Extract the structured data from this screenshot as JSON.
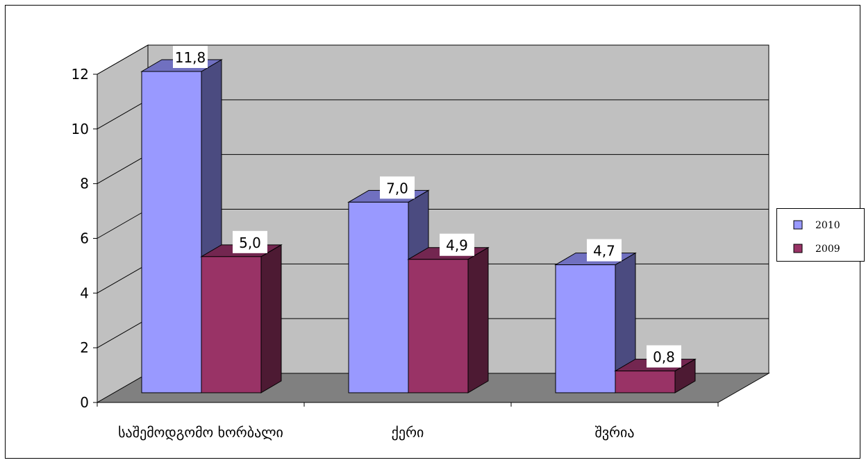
{
  "chart_data": {
    "type": "bar",
    "categories": [
      "საშემოდგომო ხორბალი",
      "ქერი",
      "შვრია"
    ],
    "series": [
      {
        "name": "2010",
        "values": [
          11.8,
          7.0,
          4.7
        ],
        "labels": [
          "11,8",
          "7,0",
          "4,7"
        ]
      },
      {
        "name": "2009",
        "values": [
          5.0,
          4.9,
          0.8
        ],
        "labels": [
          "5,0",
          "4,9",
          "0,8"
        ]
      }
    ],
    "y_ticks": [
      "0",
      "2",
      "4",
      "6",
      "8",
      "10",
      "12"
    ],
    "ylim": [
      0,
      12
    ],
    "grid": true,
    "three_d": true,
    "legend_position": "right",
    "colors": {
      "series_2010": "#9999ff",
      "series_2010_side": "#4b4b80",
      "series_2010_top": "#7070c0",
      "series_2009": "#993366",
      "series_2009_side": "#4d1a33",
      "series_2009_top": "#732650",
      "wall": "#c0c0c0",
      "floor": "#808080"
    }
  }
}
